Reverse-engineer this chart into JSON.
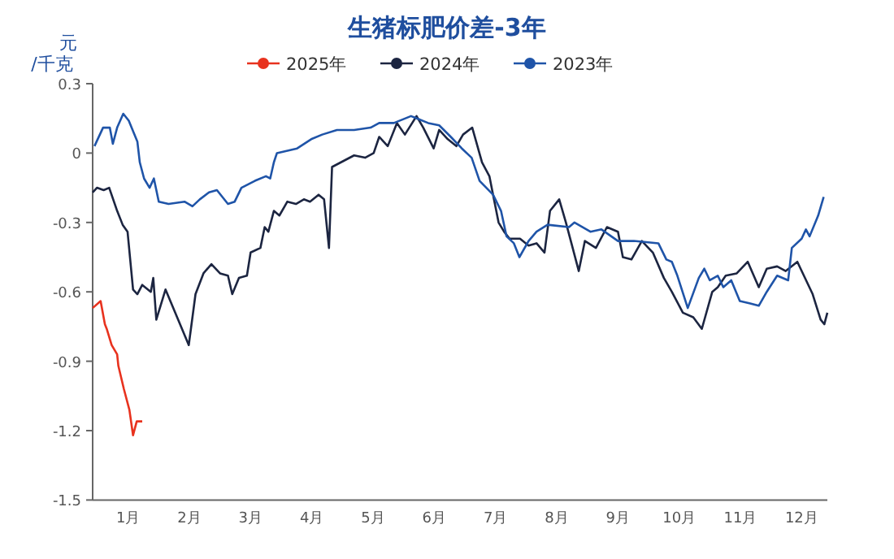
{
  "chart_data": {
    "type": "line",
    "title": "生猪标肥价差-3年",
    "ylabel": "元/千克",
    "legend": "top",
    "xlim": [
      0,
      12
    ],
    "ylim": [
      -1.5,
      0.3
    ],
    "yticks": [
      -1.5,
      -1.2,
      -0.9,
      -0.6,
      -0.3,
      0,
      0.3
    ],
    "xticks": [
      {
        "value": 0.5,
        "label": "1月"
      },
      {
        "value": 1.5,
        "label": "2月"
      },
      {
        "value": 2.5,
        "label": "3月"
      },
      {
        "value": 3.5,
        "label": "4月"
      },
      {
        "value": 4.5,
        "label": "5月"
      },
      {
        "value": 5.5,
        "label": "6月"
      },
      {
        "value": 6.5,
        "label": "7月"
      },
      {
        "value": 7.5,
        "label": "8月"
      },
      {
        "value": 8.5,
        "label": "9月"
      },
      {
        "value": 9.5,
        "label": "10月"
      },
      {
        "value": 10.5,
        "label": "11月"
      },
      {
        "value": 11.5,
        "label": "12月"
      }
    ],
    "series": [
      {
        "name": "2025年",
        "color": "#e8321e",
        "x": [
          0,
          0.13,
          0.2,
          0.23,
          0.31,
          0.4,
          0.42,
          0.51,
          0.6,
          0.66,
          0.72,
          0.81
        ],
        "values": [
          -0.67,
          -0.64,
          -0.74,
          -0.76,
          -0.83,
          -0.87,
          -0.92,
          -1.02,
          -1.11,
          -1.22,
          -1.16,
          -1.16
        ]
      },
      {
        "name": "2024年",
        "color": "#1c2541",
        "x": [
          0,
          0.07,
          0.18,
          0.27,
          0.4,
          0.49,
          0.57,
          0.66,
          0.73,
          0.81,
          0.95,
          0.99,
          1.04,
          1.19,
          1.57,
          1.68,
          1.81,
          1.94,
          2.08,
          2.21,
          2.28,
          2.39,
          2.52,
          2.58,
          2.74,
          2.81,
          2.87,
          2.96,
          3.05,
          3.18,
          3.32,
          3.45,
          3.55,
          3.69,
          3.78,
          3.86,
          3.91,
          4.27,
          4.45,
          4.59,
          4.68,
          4.82,
          4.97,
          5.1,
          5.29,
          5.4,
          5.57,
          5.66,
          5.8,
          5.94,
          6.05,
          6.2,
          6.36,
          6.48,
          6.54,
          6.63,
          6.72,
          6.81,
          6.98,
          7.12,
          7.25,
          7.38,
          7.47,
          7.62,
          7.73,
          7.82,
          7.94,
          8.04,
          8.22,
          8.4,
          8.58,
          8.66,
          8.8,
          8.97,
          9.15,
          9.33,
          9.46,
          9.64,
          9.81,
          9.95,
          10.12,
          10.21,
          10.34,
          10.52,
          10.7,
          10.88,
          11.01,
          11.18,
          11.32,
          11.51,
          11.76,
          11.89,
          11.95,
          12
        ],
        "values": [
          -0.17,
          -0.15,
          -0.16,
          -0.15,
          -0.25,
          -0.31,
          -0.34,
          -0.59,
          -0.61,
          -0.57,
          -0.6,
          -0.54,
          -0.72,
          -0.59,
          -0.83,
          -0.61,
          -0.52,
          -0.48,
          -0.52,
          -0.53,
          -0.61,
          -0.54,
          -0.53,
          -0.43,
          -0.41,
          -0.32,
          -0.34,
          -0.25,
          -0.27,
          -0.21,
          -0.22,
          -0.2,
          -0.21,
          -0.18,
          -0.2,
          -0.41,
          -0.06,
          -0.01,
          -0.02,
          0,
          0.07,
          0.03,
          0.13,
          0.08,
          0.16,
          0.11,
          0.02,
          0.1,
          0.06,
          0.03,
          0.08,
          0.11,
          -0.04,
          -0.1,
          -0.18,
          -0.3,
          -0.34,
          -0.37,
          -0.37,
          -0.4,
          -0.39,
          -0.43,
          -0.25,
          -0.2,
          -0.3,
          -0.39,
          -0.51,
          -0.38,
          -0.41,
          -0.32,
          -0.34,
          -0.45,
          -0.46,
          -0.38,
          -0.43,
          -0.54,
          -0.6,
          -0.69,
          -0.71,
          -0.76,
          -0.6,
          -0.58,
          -0.53,
          -0.52,
          -0.47,
          -0.58,
          -0.5,
          -0.49,
          -0.51,
          -0.47,
          -0.61,
          -0.72,
          -0.74,
          -0.69
        ]
      },
      {
        "name": "2023年",
        "color": "#1f54a8",
        "x": [
          0.03,
          0.17,
          0.28,
          0.33,
          0.4,
          0.5,
          0.59,
          0.73,
          0.77,
          0.84,
          0.93,
          1,
          1.08,
          1.24,
          1.5,
          1.63,
          1.75,
          1.9,
          2.03,
          2.12,
          2.21,
          2.32,
          2.43,
          2.65,
          2.83,
          2.9,
          2.96,
          3.01,
          3.34,
          3.57,
          3.75,
          3.99,
          4.27,
          4.54,
          4.68,
          4.92,
          5.2,
          5.48,
          5.66,
          5.85,
          6.03,
          6.19,
          6.32,
          6.54,
          6.67,
          6.76,
          6.88,
          6.97,
          7.12,
          7.25,
          7.43,
          7.78,
          7.87,
          8.13,
          8.31,
          8.58,
          8.84,
          9.24,
          9.37,
          9.46,
          9.55,
          9.72,
          9.9,
          9.99,
          10.08,
          10.21,
          10.3,
          10.43,
          10.57,
          10.74,
          10.88,
          11.01,
          11.18,
          11.36,
          11.42,
          11.58,
          11.65,
          11.71,
          11.85,
          11.94
        ],
        "values": [
          0.03,
          0.11,
          0.11,
          0.04,
          0.11,
          0.17,
          0.14,
          0.05,
          -0.04,
          -0.11,
          -0.15,
          -0.11,
          -0.21,
          -0.22,
          -0.21,
          -0.23,
          -0.2,
          -0.17,
          -0.16,
          -0.19,
          -0.22,
          -0.21,
          -0.15,
          -0.12,
          -0.1,
          -0.11,
          -0.04,
          0,
          0.02,
          0.06,
          0.08,
          0.1,
          0.1,
          0.11,
          0.13,
          0.13,
          0.16,
          0.13,
          0.12,
          0.07,
          0.02,
          -0.02,
          -0.12,
          -0.18,
          -0.25,
          -0.36,
          -0.39,
          -0.45,
          -0.38,
          -0.34,
          -0.31,
          -0.32,
          -0.3,
          -0.34,
          -0.33,
          -0.38,
          -0.38,
          -0.39,
          -0.46,
          -0.47,
          -0.53,
          -0.67,
          -0.54,
          -0.5,
          -0.55,
          -0.53,
          -0.58,
          -0.55,
          -0.64,
          -0.65,
          -0.66,
          -0.6,
          -0.53,
          -0.55,
          -0.41,
          -0.37,
          -0.33,
          -0.36,
          -0.27,
          -0.19
        ]
      }
    ]
  }
}
